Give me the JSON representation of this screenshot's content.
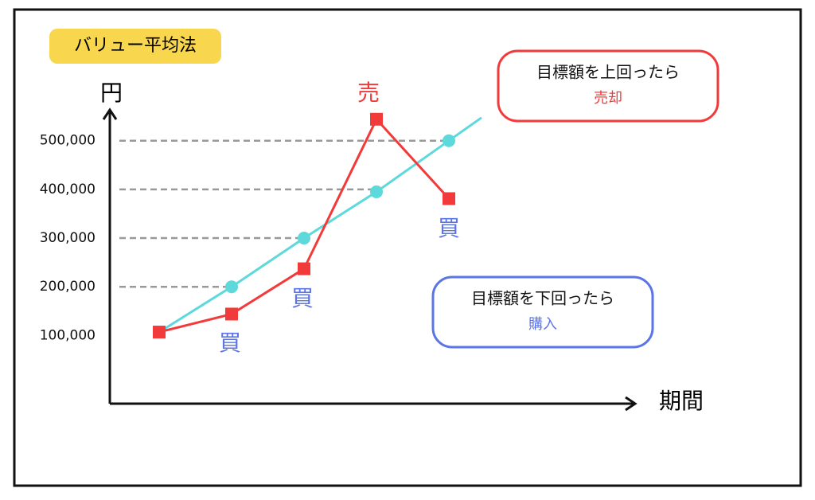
{
  "chart_data": {
    "type": "line",
    "title": "バリュー平均法",
    "y_label": "円",
    "x_label": "期間",
    "categories": [
      null,
      null,
      null,
      null,
      null
    ],
    "series": [
      {
        "color": "#5dd9dc",
        "values": [
          107000,
          200000,
          300000,
          395000,
          500000
        ]
      },
      {
        "color": "#f23a3a",
        "values": [
          107000,
          144000,
          237000,
          544000,
          381000
        ]
      }
    ],
    "ylim": [
      -40000,
      560000
    ],
    "yticks": [
      {
        "value": 100000,
        "label": "100,000"
      },
      {
        "value": 200000,
        "label": "200,000"
      },
      {
        "value": 300000,
        "label": "300,000"
      },
      {
        "value": 400000,
        "label": "400,000"
      },
      {
        "value": 500000,
        "label": "500,000"
      }
    ],
    "annotations": [
      {
        "text": "買"
      },
      {
        "text": "買"
      },
      {
        "text": "売"
      },
      {
        "text": "買"
      }
    ],
    "notes": [
      {
        "line1": "目標額を上回ったら",
        "line2": "売却",
        "color": "#f23a3a"
      },
      {
        "line1": "目標額を下回ったら",
        "line2": "購入",
        "color": "#5b74e8"
      }
    ]
  }
}
